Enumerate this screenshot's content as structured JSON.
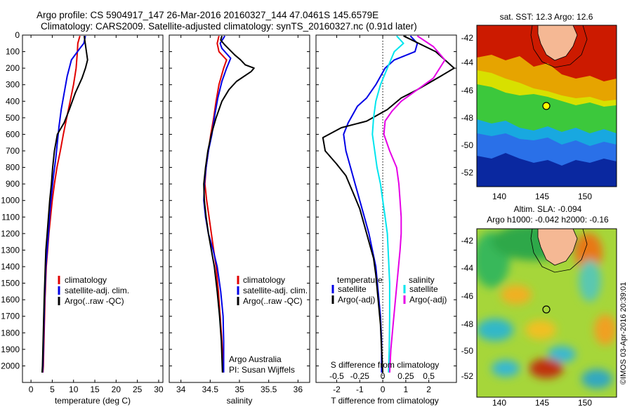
{
  "header": {
    "line1": "Argo profile: CS 5904917_147 26-Mar-2016 20160327_144 47.0461S 145.6579E",
    "line2": "Climatology: CARS2009. Satellite-adjusted climatology: synTS_20160327.nc (0.91d later)"
  },
  "colors": {
    "climatology": "#e00000",
    "satellite": "#0000e6",
    "argo": "#000000",
    "sat_s": "#00e5ee",
    "argo_s": "#e600e6"
  },
  "chart_data": [
    {
      "type": "line",
      "id": "temperature",
      "xlabel": "temperature (deg C)",
      "ylabel": "",
      "xlim": [
        -2,
        31
      ],
      "ylim": [
        2100,
        0
      ],
      "xticks": [
        0,
        5,
        10,
        15,
        20,
        25,
        30
      ],
      "yticks": [
        0,
        100,
        200,
        300,
        400,
        500,
        600,
        700,
        800,
        900,
        1000,
        1100,
        1200,
        1300,
        1400,
        1500,
        1600,
        1700,
        1800,
        1900,
        2000
      ],
      "legend": {
        "position": "lower-right",
        "items": [
          "climatology",
          "satellite-adj. clim.",
          "Argo(..raw -QC)"
        ]
      },
      "series": [
        {
          "name": "climatology",
          "color": "#e00000",
          "points": [
            [
              11.5,
              5
            ],
            [
              11,
              50
            ],
            [
              10.9,
              100
            ],
            [
              10.6,
              200
            ],
            [
              10,
              300
            ],
            [
              9.2,
              400
            ],
            [
              8.4,
              500
            ],
            [
              7.6,
              600
            ],
            [
              6.9,
              700
            ],
            [
              6.1,
              800
            ],
            [
              5.5,
              900
            ],
            [
              5,
              1000
            ],
            [
              4.6,
              1100
            ],
            [
              4.2,
              1200
            ],
            [
              3.9,
              1300
            ],
            [
              3.6,
              1400
            ],
            [
              3.3,
              1600
            ],
            [
              3.1,
              1800
            ],
            [
              2.9,
              2000
            ],
            [
              2.8,
              2040
            ]
          ]
        },
        {
          "name": "satellite-adj. clim.",
          "color": "#0000e6",
          "points": [
            [
              12.8,
              5
            ],
            [
              12.4,
              50
            ],
            [
              11.5,
              80
            ],
            [
              9.5,
              150
            ],
            [
              8.5,
              250
            ],
            [
              7.8,
              350
            ],
            [
              7.1,
              450
            ],
            [
              6.6,
              550
            ],
            [
              6.2,
              650
            ],
            [
              5.8,
              750
            ],
            [
              5.3,
              850
            ],
            [
              4.9,
              950
            ],
            [
              4.5,
              1050
            ],
            [
              4.1,
              1200
            ],
            [
              3.8,
              1300
            ],
            [
              3.5,
              1400
            ],
            [
              3.2,
              1600
            ],
            [
              3,
              1800
            ],
            [
              2.8,
              2000
            ],
            [
              2.7,
              2040
            ]
          ]
        },
        {
          "name": "Argo(..raw -QC)",
          "color": "#000000",
          "points": [
            [
              12.5,
              5
            ],
            [
              12.8,
              60
            ],
            [
              13.3,
              150
            ],
            [
              12.8,
              200
            ],
            [
              12,
              260
            ],
            [
              10.4,
              350
            ],
            [
              9,
              450
            ],
            [
              7.8,
              530
            ],
            [
              6.2,
              600
            ],
            [
              5.5,
              700
            ],
            [
              5.1,
              800
            ],
            [
              4.8,
              900
            ],
            [
              4.4,
              1000
            ],
            [
              4.1,
              1100
            ],
            [
              3.8,
              1200
            ],
            [
              3.5,
              1300
            ],
            [
              3.3,
              1450
            ],
            [
              3.1,
              1600
            ],
            [
              2.9,
              1800
            ],
            [
              2.7,
              2000
            ],
            [
              2.6,
              2040
            ]
          ]
        }
      ]
    },
    {
      "type": "line",
      "id": "salinity",
      "xlabel": "salinity",
      "xlim": [
        33.8,
        36.2
      ],
      "ylim": [
        2100,
        0
      ],
      "xticks": [
        34,
        34.5,
        35,
        35.5,
        36
      ],
      "legend": {
        "position": "lower-right",
        "items": [
          "climatology",
          "satellite-adj. clim.",
          "Argo(..raw -QC)"
        ]
      },
      "annotations": [
        "Argo Australia",
        "PI: Susan Wijffels"
      ],
      "series": [
        {
          "name": "climatology",
          "color": "#e00000",
          "points": [
            [
              34.65,
              5
            ],
            [
              34.62,
              50
            ],
            [
              34.65,
              100
            ],
            [
              34.78,
              150
            ],
            [
              34.73,
              200
            ],
            [
              34.65,
              300
            ],
            [
              34.6,
              400
            ],
            [
              34.56,
              500
            ],
            [
              34.51,
              600
            ],
            [
              34.47,
              700
            ],
            [
              34.43,
              800
            ],
            [
              34.41,
              900
            ],
            [
              34.44,
              1000
            ],
            [
              34.48,
              1100
            ],
            [
              34.52,
              1200
            ],
            [
              34.56,
              1300
            ],
            [
              34.6,
              1400
            ],
            [
              34.64,
              1550
            ],
            [
              34.67,
              1700
            ],
            [
              34.7,
              1850
            ],
            [
              34.72,
              2040
            ]
          ]
        },
        {
          "name": "satellite-adj. clim.",
          "color": "#0000e6",
          "points": [
            [
              34.75,
              5
            ],
            [
              34.67,
              50
            ],
            [
              34.7,
              80
            ],
            [
              34.85,
              140
            ],
            [
              34.78,
              200
            ],
            [
              34.7,
              280
            ],
            [
              34.63,
              380
            ],
            [
              34.58,
              480
            ],
            [
              34.53,
              600
            ],
            [
              34.47,
              700
            ],
            [
              34.43,
              800
            ],
            [
              34.4,
              900
            ],
            [
              34.39,
              1000
            ],
            [
              34.42,
              1100
            ],
            [
              34.47,
              1200
            ],
            [
              34.55,
              1300
            ],
            [
              34.62,
              1400
            ],
            [
              34.68,
              1550
            ],
            [
              34.72,
              1700
            ],
            [
              34.73,
              1850
            ],
            [
              34.73,
              2040
            ]
          ]
        },
        {
          "name": "Argo(..raw -QC)",
          "color": "#000000",
          "points": [
            [
              34.7,
              5
            ],
            [
              34.68,
              30
            ],
            [
              34.75,
              60
            ],
            [
              34.92,
              120
            ],
            [
              35.02,
              150
            ],
            [
              35.1,
              180
            ],
            [
              35.25,
              200
            ],
            [
              35.2,
              220
            ],
            [
              34.95,
              280
            ],
            [
              34.82,
              330
            ],
            [
              34.7,
              400
            ],
            [
              34.6,
              500
            ],
            [
              34.52,
              600
            ],
            [
              34.46,
              700
            ],
            [
              34.42,
              800
            ],
            [
              34.39,
              900
            ],
            [
              34.4,
              1000
            ],
            [
              34.43,
              1100
            ],
            [
              34.47,
              1200
            ],
            [
              34.52,
              1300
            ],
            [
              34.57,
              1400
            ],
            [
              34.62,
              1550
            ],
            [
              34.66,
              1700
            ],
            [
              34.69,
              1850
            ],
            [
              34.71,
              2040
            ]
          ]
        }
      ]
    },
    {
      "type": "line",
      "id": "difference",
      "xlabel": "T difference from climatology",
      "xlabel_top": "S difference from climatology",
      "xlim": [
        -2.9,
        3.2
      ],
      "ylim": [
        2100,
        0
      ],
      "xticks": [
        -2,
        -1,
        0,
        1,
        2
      ],
      "sticks": [
        "-0.5",
        "-0.25",
        "0",
        "0.25",
        "0.5"
      ],
      "stick_values": [
        -2,
        -1,
        0,
        1,
        2
      ],
      "legend": {
        "position": "lower-center",
        "temperature_title": "temperature",
        "salinity_title": "salinity",
        "temperature_items": [
          "satellite",
          "Argo(-adj)"
        ],
        "salinity_items": [
          "satellite",
          "Argo(-adj)"
        ]
      },
      "series": [
        {
          "name": "temperature satellite",
          "color": "#0000e6",
          "points": [
            [
              1.2,
              5
            ],
            [
              1.5,
              50
            ],
            [
              1.4,
              100
            ],
            [
              0.5,
              150
            ],
            [
              0.1,
              200
            ],
            [
              -0.3,
              300
            ],
            [
              -0.7,
              380
            ],
            [
              -1.1,
              430
            ],
            [
              -1.5,
              530
            ],
            [
              -1.7,
              600
            ],
            [
              -1.6,
              700
            ],
            [
              -1.4,
              800
            ],
            [
              -1.2,
              900
            ],
            [
              -1.0,
              1000
            ],
            [
              -0.8,
              1100
            ],
            [
              -0.6,
              1200
            ],
            [
              -0.45,
              1300
            ],
            [
              -0.3,
              1400
            ],
            [
              -0.2,
              1550
            ],
            [
              -0.1,
              1700
            ],
            [
              -0.05,
              1850
            ],
            [
              -0.05,
              2040
            ]
          ]
        },
        {
          "name": "temperature Argo(-adj)",
          "color": "#000000",
          "points": [
            [
              0.9,
              5
            ],
            [
              2.3,
              100
            ],
            [
              3.1,
              200
            ],
            [
              2.5,
              250
            ],
            [
              1.5,
              330
            ],
            [
              0.8,
              380
            ],
            [
              0.2,
              450
            ],
            [
              -0.7,
              520
            ],
            [
              -1.8,
              560
            ],
            [
              -2.6,
              620
            ],
            [
              -2.5,
              700
            ],
            [
              -2.0,
              780
            ],
            [
              -1.6,
              850
            ],
            [
              -1.3,
              950
            ],
            [
              -1.0,
              1050
            ],
            [
              -0.8,
              1150
            ],
            [
              -0.6,
              1250
            ],
            [
              -0.4,
              1350
            ],
            [
              -0.3,
              1450
            ],
            [
              -0.2,
              1600
            ],
            [
              -0.1,
              1750
            ],
            [
              -0.05,
              1900
            ],
            [
              0,
              2040
            ]
          ]
        },
        {
          "name": "salinity satellite",
          "color": "#00e5ee",
          "points": [
            [
              0.6,
              5
            ],
            [
              0.9,
              50
            ],
            [
              0.5,
              100
            ],
            [
              0.2,
              200
            ],
            [
              -0.1,
              300
            ],
            [
              -0.3,
              400
            ],
            [
              -0.4,
              500
            ],
            [
              -0.45,
              600
            ],
            [
              -0.35,
              700
            ],
            [
              -0.25,
              800
            ],
            [
              -0.1,
              900
            ],
            [
              0,
              1000
            ],
            [
              0.1,
              1100
            ],
            [
              0.2,
              1200
            ],
            [
              0.25,
              1350
            ],
            [
              0.3,
              1500
            ],
            [
              0.3,
              1700
            ],
            [
              0.28,
              1900
            ],
            [
              0.25,
              2040
            ]
          ]
        },
        {
          "name": "salinity Argo(-adj)",
          "color": "#e600e6",
          "points": [
            [
              1.5,
              5
            ],
            [
              2.2,
              70
            ],
            [
              2.7,
              150
            ],
            [
              2.2,
              260
            ],
            [
              1.5,
              330
            ],
            [
              0.8,
              400
            ],
            [
              0.4,
              460
            ],
            [
              0.1,
              520
            ],
            [
              0.05,
              600
            ],
            [
              0.3,
              700
            ],
            [
              0.6,
              800
            ],
            [
              0.7,
              900
            ],
            [
              0.75,
              1000
            ],
            [
              0.8,
              1100
            ],
            [
              0.8,
              1200
            ],
            [
              0.75,
              1300
            ],
            [
              0.65,
              1450
            ],
            [
              0.55,
              1600
            ],
            [
              0.45,
              1750
            ],
            [
              0.35,
              1900
            ],
            [
              0.3,
              2040
            ]
          ]
        }
      ]
    }
  ],
  "maps": {
    "sst": {
      "title": "sat. SST: 12.3 Argo: 12.6",
      "xticks": [
        "140",
        "145",
        "150"
      ],
      "yticks": [
        "-42",
        "-44",
        "-46",
        "-48",
        "-50",
        "-52"
      ]
    },
    "sla": {
      "title1": "Altim. SLA: -0.094",
      "title2": "Argo h1000: -0.042 h2000: -0.16",
      "xticks": [
        "140",
        "145",
        "150"
      ],
      "yticks": [
        "-42",
        "-44",
        "-46",
        "-48",
        "-50",
        "-52"
      ]
    },
    "watermark": "©IMOS 03-Apr-2016 20:39:01"
  }
}
